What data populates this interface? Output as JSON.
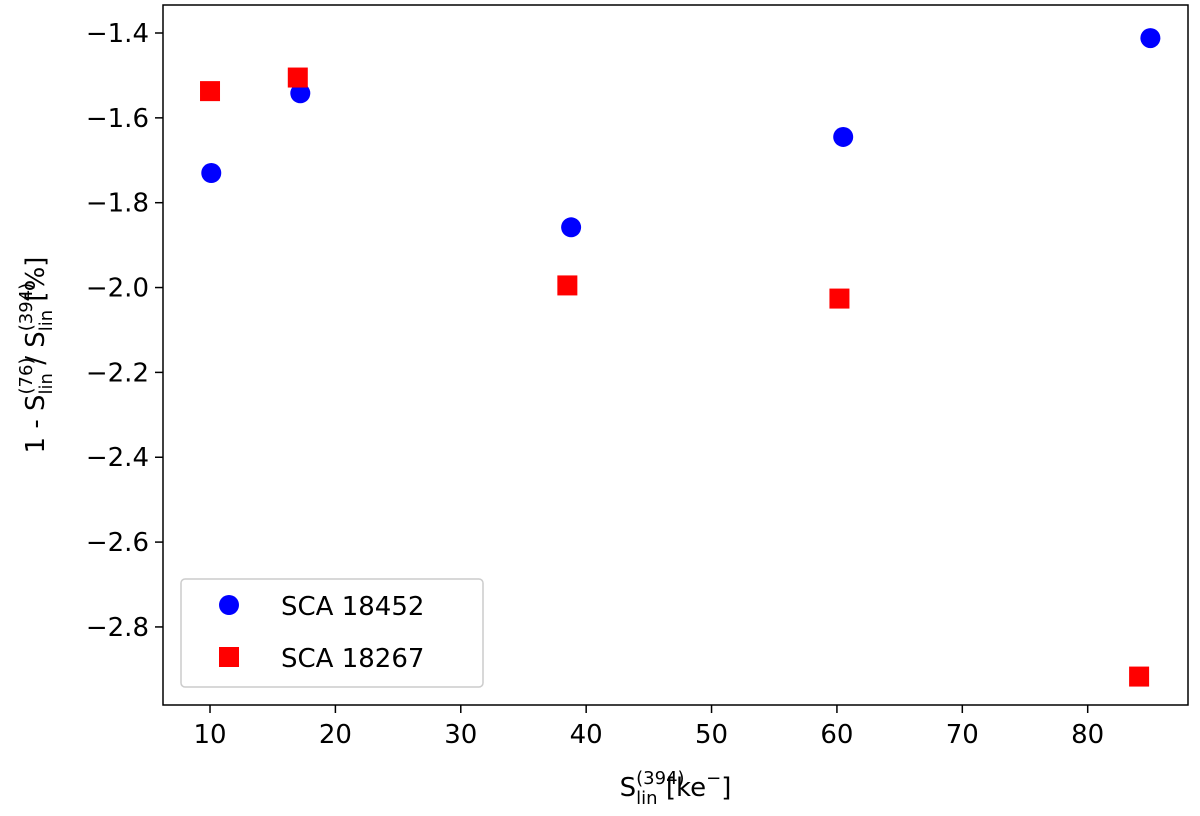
{
  "chart_data": {
    "type": "scatter",
    "xlabel": [
      {
        "text": "S"
      },
      {
        "sup": "(394)"
      },
      {
        "sub": "lin"
      },
      {
        "text": " [ke"
      },
      {
        "sup": "−"
      },
      {
        "text": "]"
      }
    ],
    "ylabel": [
      {
        "text": "1 - S"
      },
      {
        "sup": "(76)"
      },
      {
        "sub": "lin"
      },
      {
        "text": " / S"
      },
      {
        "sup": "(394)"
      },
      {
        "sub": "lin"
      },
      {
        "text": " [%]"
      }
    ],
    "xlim": [
      6.25,
      88.0
    ],
    "ylim": [
      -2.984,
      -1.334
    ],
    "xticks": [
      10,
      20,
      30,
      40,
      50,
      60,
      70,
      80
    ],
    "yticks": [
      {
        "value": -1.4,
        "label": "−1.4"
      },
      {
        "value": -1.6,
        "label": "−1.6"
      },
      {
        "value": -1.8,
        "label": "−1.8"
      },
      {
        "value": -2.0,
        "label": "−2.0"
      },
      {
        "value": -2.2,
        "label": "−2.2"
      },
      {
        "value": -2.4,
        "label": "−2.4"
      },
      {
        "value": -2.6,
        "label": "−2.6"
      },
      {
        "value": -2.8,
        "label": "−2.8"
      }
    ],
    "legend": "lower left",
    "series": [
      {
        "name": "SCA 18452",
        "color": "#0000ff",
        "marker": "o",
        "x": [
          10.1,
          17.2,
          38.8,
          60.5,
          85.0
        ],
        "values": [
          -1.73,
          -1.542,
          -1.858,
          -1.645,
          -1.412
        ]
      },
      {
        "name": "SCA 18267",
        "color": "#ff0000",
        "marker": "s",
        "x": [
          10.0,
          17.0,
          38.5,
          60.2,
          84.1
        ],
        "values": [
          -1.537,
          -1.505,
          -1.995,
          -2.026,
          -2.917
        ]
      }
    ]
  }
}
